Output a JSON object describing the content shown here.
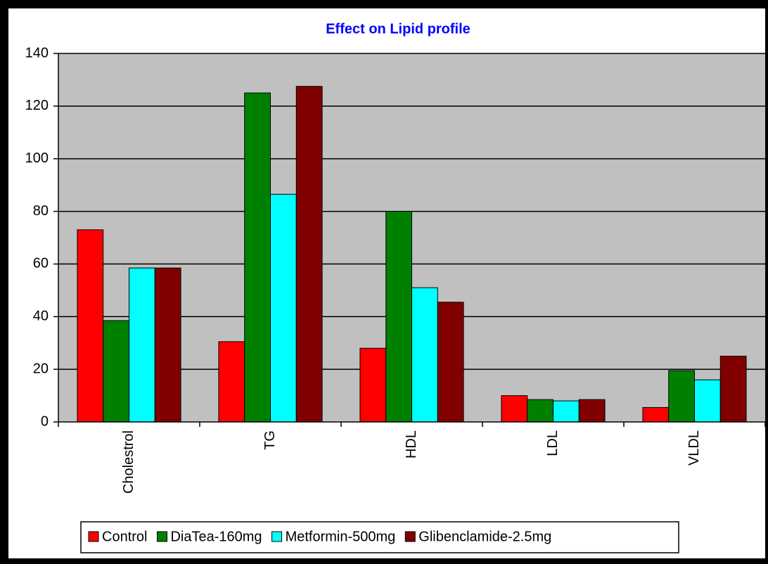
{
  "chart_data": {
    "type": "bar",
    "title": "Effect  on Lipid profile",
    "categories": [
      "Cholestrol",
      "TG",
      "HDL",
      "LDL",
      "VLDL"
    ],
    "series": [
      {
        "name": "Control",
        "color": "#ff0000",
        "values": [
          73,
          30.5,
          28,
          10,
          5.5
        ]
      },
      {
        "name": "DiaTea-160mg",
        "color": "#008000",
        "values": [
          38.5,
          125,
          80,
          8.5,
          19.5
        ]
      },
      {
        "name": "Metformin-500mg",
        "color": "#00ffff",
        "values": [
          58.5,
          86.5,
          51,
          8,
          16
        ]
      },
      {
        "name": "Glibenclamide-2.5mg",
        "color": "#800000",
        "values": [
          58.5,
          127.5,
          45.5,
          8.5,
          25
        ]
      }
    ],
    "ylim": [
      0,
      140
    ],
    "yticks": [
      0,
      20,
      40,
      60,
      80,
      100,
      120,
      140
    ],
    "grid": true,
    "legend": "bottom"
  }
}
